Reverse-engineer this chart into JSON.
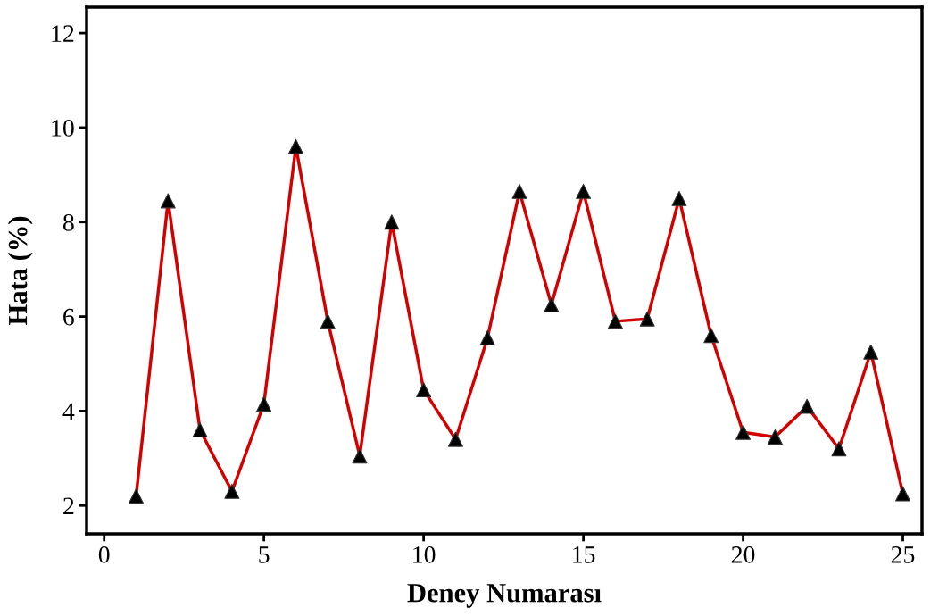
{
  "chart_data": {
    "type": "line",
    "xlabel": "Deney Numarası",
    "ylabel": "Hata (%)",
    "x": [
      1,
      2,
      3,
      4,
      5,
      6,
      7,
      8,
      9,
      10,
      11,
      12,
      13,
      14,
      15,
      16,
      17,
      18,
      19,
      20,
      21,
      22,
      23,
      24,
      25
    ],
    "series": [
      {
        "color": "#d40000",
        "values": [
          2.2,
          8.45,
          3.6,
          2.3,
          4.15,
          9.6,
          5.9,
          3.05,
          8.0,
          4.45,
          3.4,
          5.55,
          8.65,
          6.25,
          8.65,
          5.9,
          5.95,
          8.5,
          5.6,
          3.55,
          3.45,
          4.1,
          3.2,
          5.25,
          2.25
        ]
      }
    ],
    "marker": "triangle",
    "line_style": "solid",
    "grid": false,
    "xlim": [
      -0.55,
      25.6
    ],
    "ylim": [
      1.4,
      12.55
    ],
    "xticks": [
      0,
      5,
      10,
      15,
      20,
      25
    ],
    "yticks": [
      2,
      4,
      6,
      8,
      10,
      12
    ]
  }
}
